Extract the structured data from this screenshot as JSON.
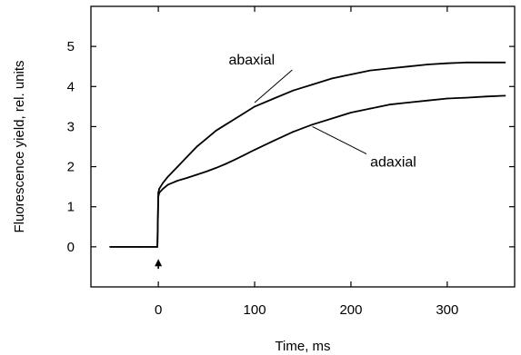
{
  "chart_data": {
    "type": "line",
    "title": "",
    "xlabel": "Time, ms",
    "ylabel": "Fluorescence  yield, rel. units",
    "xlim": [
      -70,
      370
    ],
    "ylim": [
      -1,
      6
    ],
    "x_ticks": [
      0,
      100,
      200,
      300
    ],
    "x_tick_labels": [
      "0",
      "100",
      "200",
      "300"
    ],
    "y_ticks": [
      0,
      1,
      2,
      3,
      4,
      5
    ],
    "y_tick_labels": [
      "0",
      "1",
      "2",
      "3",
      "4",
      "5"
    ],
    "grid": false,
    "legend": "none",
    "series": [
      {
        "name": "abaxial",
        "color": "#000000",
        "x": [
          -50,
          -20,
          -1,
          0,
          1,
          5,
          10,
          20,
          30,
          40,
          50,
          60,
          70,
          80,
          90,
          100,
          120,
          140,
          160,
          180,
          200,
          220,
          240,
          260,
          280,
          300,
          320,
          340,
          360
        ],
        "y": [
          0.0,
          0.0,
          0.0,
          1.35,
          1.45,
          1.6,
          1.75,
          2.0,
          2.25,
          2.5,
          2.7,
          2.9,
          3.05,
          3.2,
          3.35,
          3.5,
          3.7,
          3.9,
          4.05,
          4.2,
          4.3,
          4.4,
          4.45,
          4.5,
          4.55,
          4.58,
          4.6,
          4.6,
          4.6
        ]
      },
      {
        "name": "adaxial",
        "color": "#000000",
        "x": [
          -50,
          -20,
          -1,
          0,
          1,
          5,
          10,
          20,
          30,
          40,
          50,
          60,
          70,
          80,
          90,
          100,
          120,
          140,
          160,
          180,
          200,
          220,
          240,
          260,
          280,
          300,
          320,
          340,
          360
        ],
        "y": [
          0.0,
          0.0,
          0.0,
          1.25,
          1.35,
          1.45,
          1.55,
          1.65,
          1.72,
          1.8,
          1.88,
          1.97,
          2.07,
          2.18,
          2.3,
          2.42,
          2.65,
          2.87,
          3.05,
          3.2,
          3.35,
          3.45,
          3.55,
          3.6,
          3.65,
          3.7,
          3.72,
          3.75,
          3.77
        ]
      }
    ],
    "annotations": [
      {
        "text": "abaxial",
        "series": "abaxial",
        "x": 73,
        "y": 4.55,
        "pointer_x": 100,
        "pointer_y": 3.6
      },
      {
        "text": "adaxial",
        "series": "adaxial",
        "x": 220,
        "y": 2.0,
        "pointer_x": 160,
        "pointer_y": 3.0
      },
      {
        "text": "↑",
        "series": "",
        "x": 0,
        "y": -0.55,
        "pointer_x": 0,
        "pointer_y": -0.35
      }
    ]
  }
}
